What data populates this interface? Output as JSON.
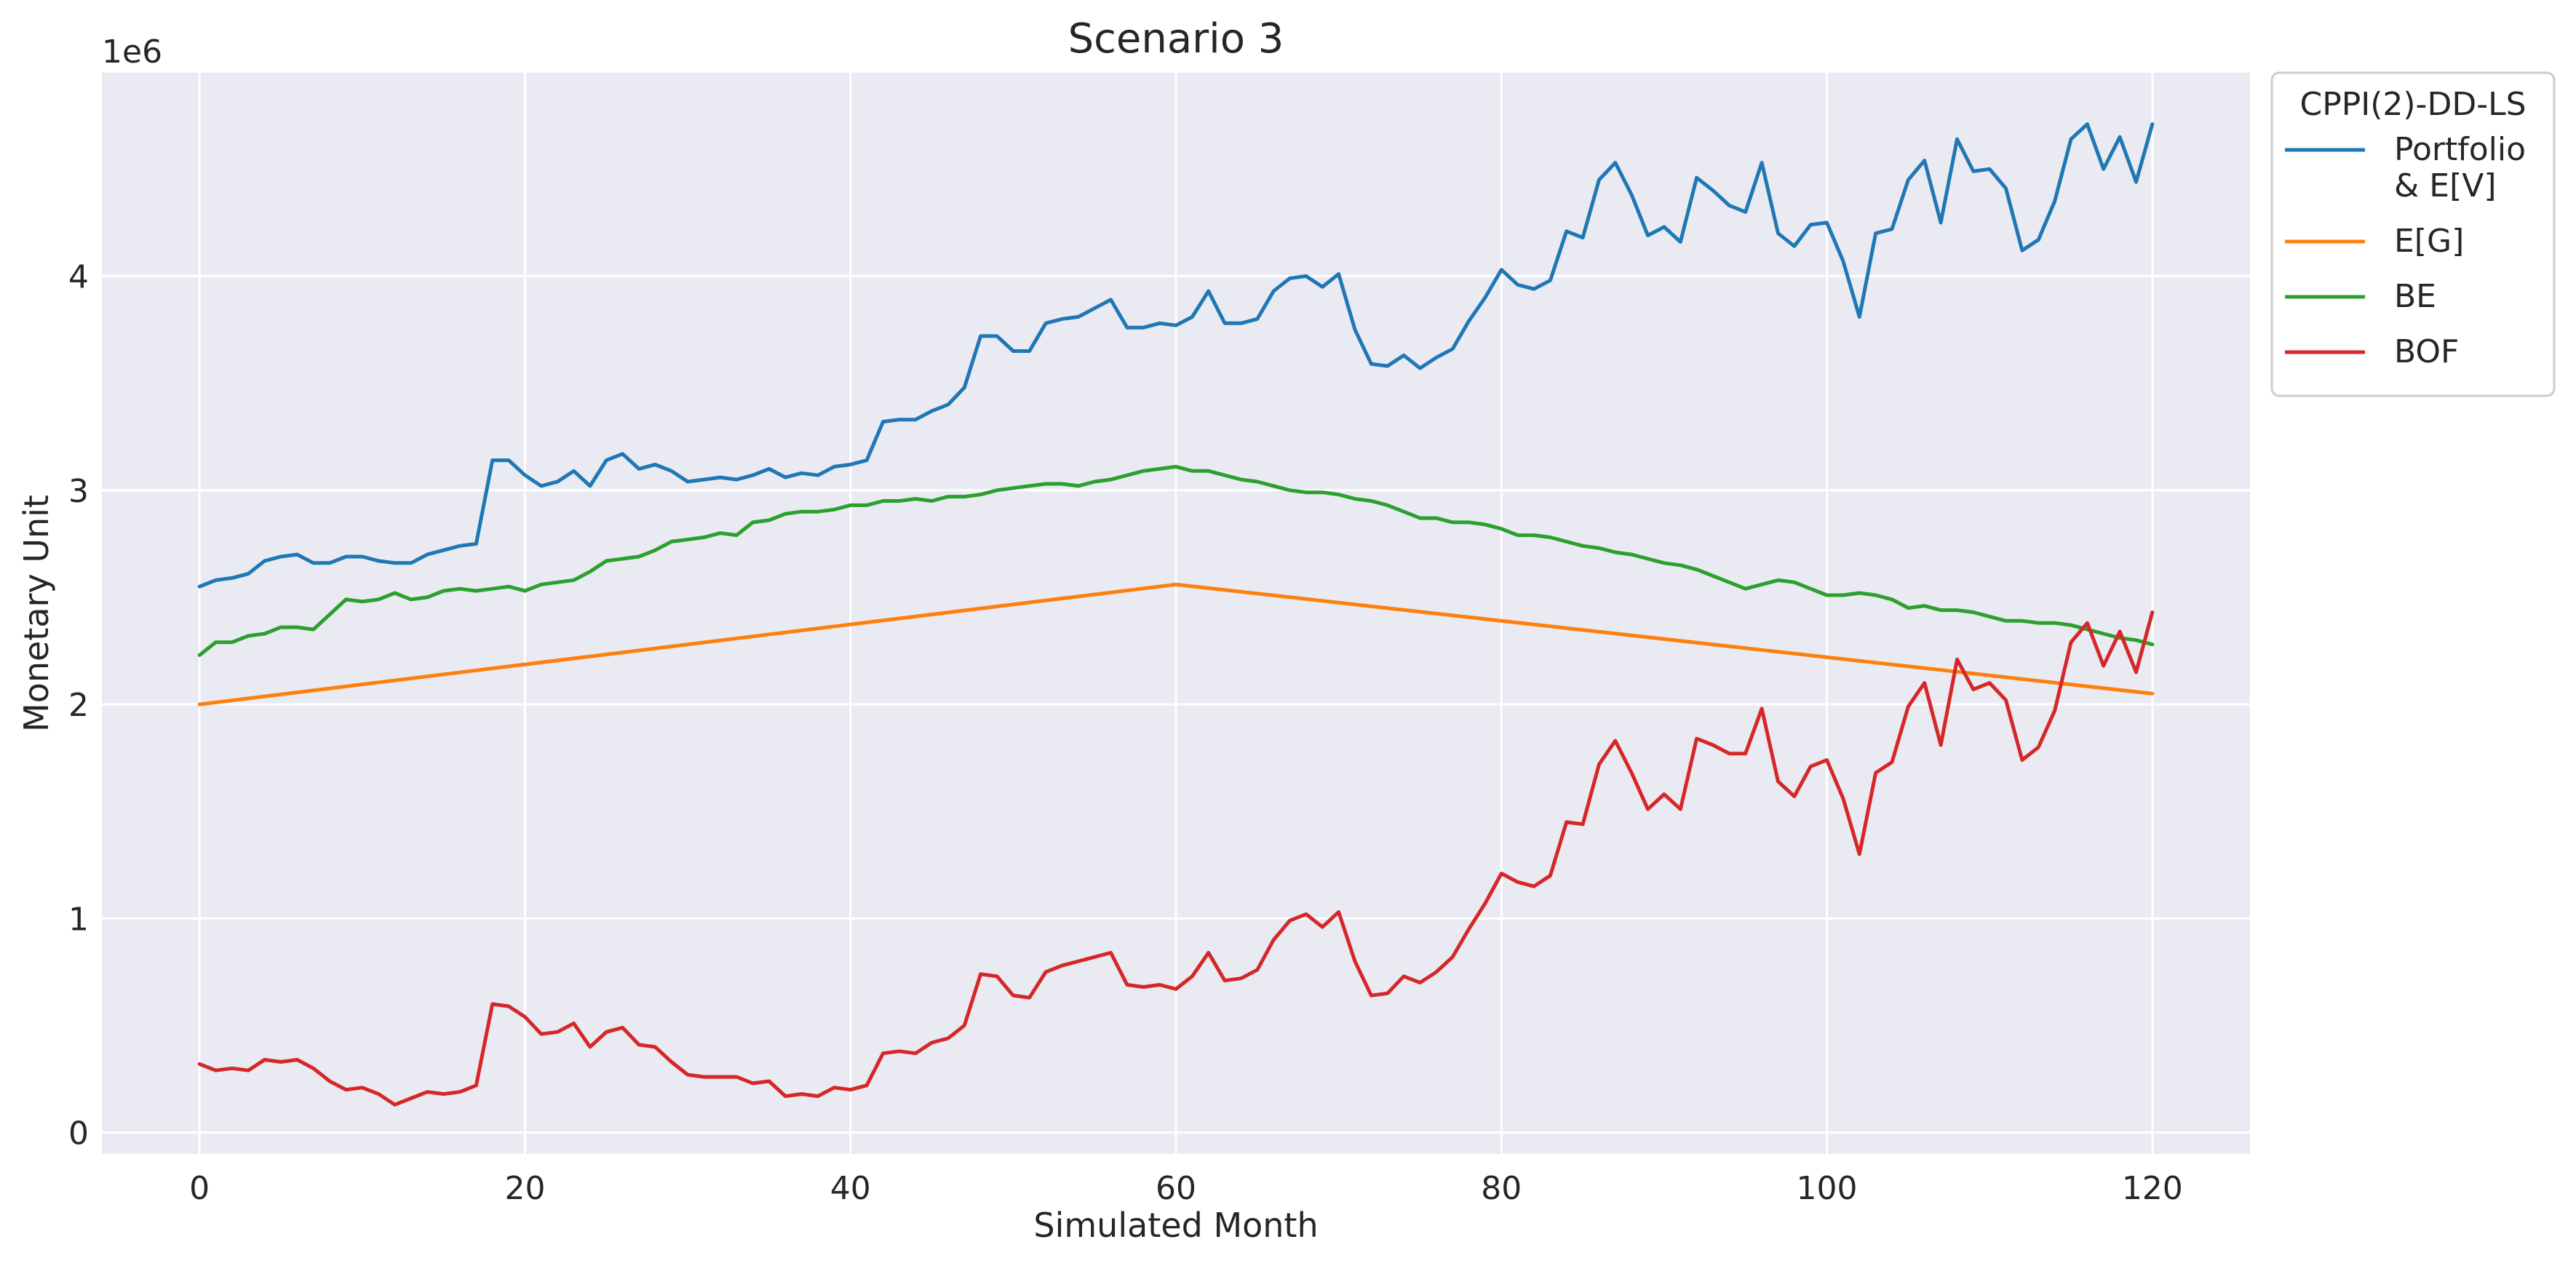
{
  "chart_data": {
    "type": "line",
    "title": "Scenario 3",
    "xlabel": "Simulated Month",
    "ylabel": "Monetary Unit",
    "y_offset_label": "1e6",
    "xlim": [
      -6,
      126
    ],
    "ylim": [
      -0.1,
      4.95
    ],
    "x_ticks": [
      0,
      20,
      40,
      60,
      80,
      100,
      120
    ],
    "y_ticks": [
      0,
      1,
      2,
      3,
      4
    ],
    "grid": true,
    "legend": {
      "title": "CPPI(2)-DD-LS",
      "placement": "outside-top-right",
      "entries": [
        {
          "lines": [
            "Portfolio",
            "& E[V]"
          ],
          "color": "#1f77b4"
        },
        {
          "lines": [
            "E[G]"
          ],
          "color": "#ff7f0e"
        },
        {
          "lines": [
            "BE"
          ],
          "color": "#2ca02c"
        },
        {
          "lines": [
            "BOF"
          ],
          "color": "#d62728"
        }
      ]
    },
    "series": [
      {
        "name": "Portfolio & E[V]",
        "color": "#1f77b4",
        "x_start": 0,
        "x_step": 1,
        "values": [
          2.55,
          2.58,
          2.59,
          2.61,
          2.67,
          2.69,
          2.7,
          2.66,
          2.66,
          2.69,
          2.69,
          2.67,
          2.66,
          2.66,
          2.7,
          2.72,
          2.74,
          2.75,
          3.14,
          3.14,
          3.07,
          3.02,
          3.04,
          3.09,
          3.02,
          3.14,
          3.17,
          3.1,
          3.12,
          3.09,
          3.04,
          3.05,
          3.06,
          3.05,
          3.07,
          3.1,
          3.06,
          3.08,
          3.07,
          3.11,
          3.12,
          3.14,
          3.32,
          3.33,
          3.33,
          3.37,
          3.4,
          3.48,
          3.72,
          3.72,
          3.65,
          3.65,
          3.78,
          3.8,
          3.81,
          3.85,
          3.89,
          3.76,
          3.76,
          3.78,
          3.77,
          3.81,
          3.93,
          3.78,
          3.78,
          3.8,
          3.93,
          3.99,
          4.0,
          3.95,
          4.01,
          3.75,
          3.59,
          3.58,
          3.63,
          3.57,
          3.62,
          3.66,
          3.79,
          3.9,
          4.03,
          3.96,
          3.94,
          3.98,
          4.21,
          4.18,
          4.45,
          4.53,
          4.38,
          4.19,
          4.23,
          4.16,
          4.46,
          4.4,
          4.33,
          4.3,
          4.53,
          4.2,
          4.14,
          4.24,
          4.25,
          4.07,
          3.81,
          4.2,
          4.22,
          4.45,
          4.54,
          4.25,
          4.64,
          4.49,
          4.5,
          4.41,
          4.12,
          4.17,
          4.35,
          4.64,
          4.71,
          4.5,
          4.65,
          4.44,
          4.71
        ]
      },
      {
        "name": "E[G]",
        "color": "#ff7f0e",
        "x": [
          0,
          60,
          120
        ],
        "values": [
          2.0,
          2.56,
          2.05
        ]
      },
      {
        "name": "BE",
        "color": "#2ca02c",
        "x_start": 0,
        "x_step": 1,
        "values": [
          2.23,
          2.29,
          2.29,
          2.32,
          2.33,
          2.36,
          2.36,
          2.35,
          2.42,
          2.49,
          2.48,
          2.49,
          2.52,
          2.49,
          2.5,
          2.53,
          2.54,
          2.53,
          2.54,
          2.55,
          2.53,
          2.56,
          2.57,
          2.58,
          2.62,
          2.67,
          2.68,
          2.69,
          2.72,
          2.76,
          2.77,
          2.78,
          2.8,
          2.79,
          2.85,
          2.86,
          2.89,
          2.9,
          2.9,
          2.91,
          2.93,
          2.93,
          2.95,
          2.95,
          2.96,
          2.95,
          2.97,
          2.97,
          2.98,
          3.0,
          3.01,
          3.02,
          3.03,
          3.03,
          3.02,
          3.04,
          3.05,
          3.07,
          3.09,
          3.1,
          3.11,
          3.09,
          3.09,
          3.07,
          3.05,
          3.04,
          3.02,
          3.0,
          2.99,
          2.99,
          2.98,
          2.96,
          2.95,
          2.93,
          2.9,
          2.87,
          2.87,
          2.85,
          2.85,
          2.84,
          2.82,
          2.79,
          2.79,
          2.78,
          2.76,
          2.74,
          2.73,
          2.71,
          2.7,
          2.68,
          2.66,
          2.65,
          2.63,
          2.6,
          2.57,
          2.54,
          2.56,
          2.58,
          2.57,
          2.54,
          2.51,
          2.51,
          2.52,
          2.51,
          2.49,
          2.45,
          2.46,
          2.44,
          2.44,
          2.43,
          2.41,
          2.39,
          2.39,
          2.38,
          2.38,
          2.37,
          2.35,
          2.33,
          2.31,
          2.3,
          2.28
        ]
      },
      {
        "name": "BOF",
        "color": "#d62728",
        "x_start": 0,
        "x_step": 1,
        "values": [
          0.32,
          0.29,
          0.3,
          0.29,
          0.34,
          0.33,
          0.34,
          0.3,
          0.24,
          0.2,
          0.21,
          0.18,
          0.13,
          0.16,
          0.19,
          0.18,
          0.19,
          0.22,
          0.6,
          0.59,
          0.54,
          0.46,
          0.47,
          0.51,
          0.4,
          0.47,
          0.49,
          0.41,
          0.4,
          0.33,
          0.27,
          0.26,
          0.26,
          0.26,
          0.23,
          0.24,
          0.17,
          0.18,
          0.17,
          0.21,
          0.2,
          0.22,
          0.37,
          0.38,
          0.37,
          0.42,
          0.44,
          0.5,
          0.74,
          0.73,
          0.64,
          0.63,
          0.75,
          0.78,
          0.8,
          0.82,
          0.84,
          0.69,
          0.68,
          0.69,
          0.67,
          0.73,
          0.84,
          0.71,
          0.72,
          0.76,
          0.9,
          0.99,
          1.02,
          0.96,
          1.03,
          0.8,
          0.64,
          0.65,
          0.73,
          0.7,
          0.75,
          0.82,
          0.95,
          1.07,
          1.21,
          1.17,
          1.15,
          1.2,
          1.45,
          1.44,
          1.72,
          1.83,
          1.68,
          1.51,
          1.58,
          1.51,
          1.84,
          1.81,
          1.77,
          1.77,
          1.98,
          1.64,
          1.57,
          1.71,
          1.74,
          1.56,
          1.3,
          1.68,
          1.73,
          1.99,
          2.1,
          1.81,
          2.21,
          2.07,
          2.1,
          2.02,
          1.74,
          1.8,
          1.97,
          2.29,
          2.38,
          2.18,
          2.34,
          2.15,
          2.43
        ]
      }
    ]
  }
}
